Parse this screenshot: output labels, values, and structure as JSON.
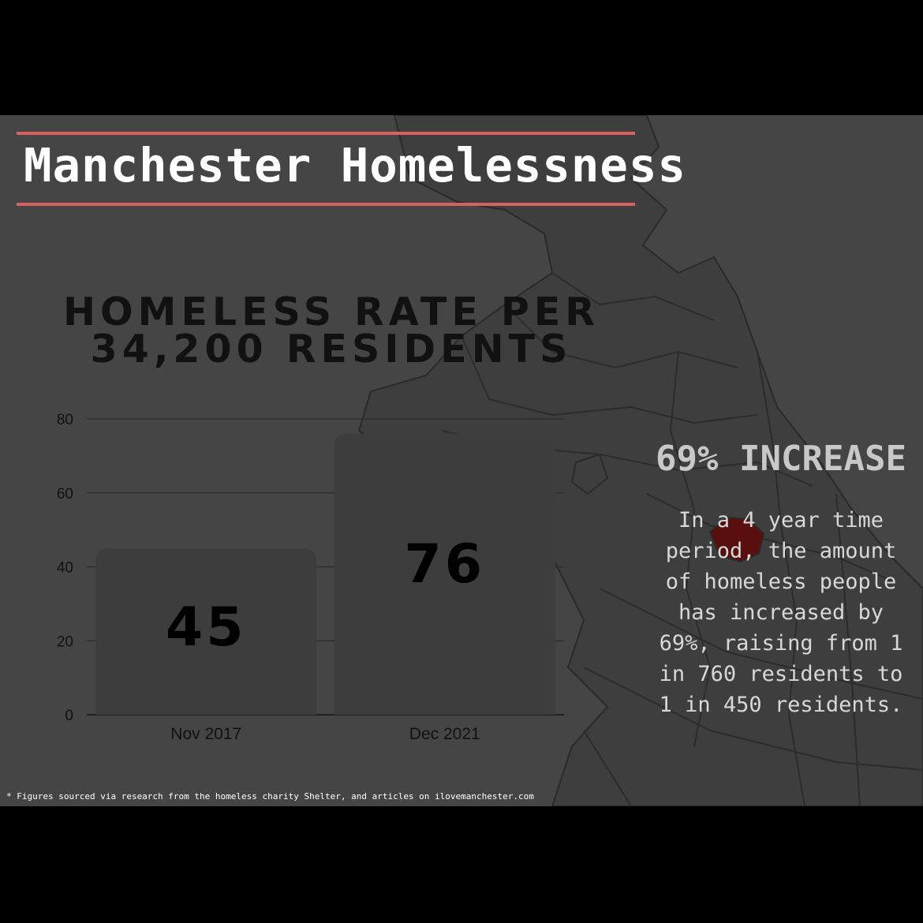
{
  "title": "Manchester Homelessness",
  "chart_data": {
    "type": "bar",
    "title": "HOMELESS RATE PER 34,200 RESIDENTS",
    "categories": [
      "Nov 2017",
      "Dec 2021"
    ],
    "values": [
      45,
      76
    ],
    "data_labels": [
      "45",
      "76"
    ],
    "ylim": [
      0,
      80
    ],
    "yticks": [
      "0",
      "20",
      "40",
      "60",
      "80"
    ],
    "xlabel": "",
    "ylabel": "",
    "grid": true,
    "legend": "none"
  },
  "highlight": "69% INCREASE",
  "description": "In a 4 year time period, the amount of homeless people has increased by 69%, raising from 1 in 760 residents to 1 in 450 residents.",
  "footnote": "* Figures sourced via research from the homeless charity Shelter, and articles on ilovemanchester.com",
  "colors": {
    "background": "#454545",
    "accent": "#d9605f",
    "bar": "#3d3d3d",
    "highlight_region": "#5a0f0f"
  }
}
